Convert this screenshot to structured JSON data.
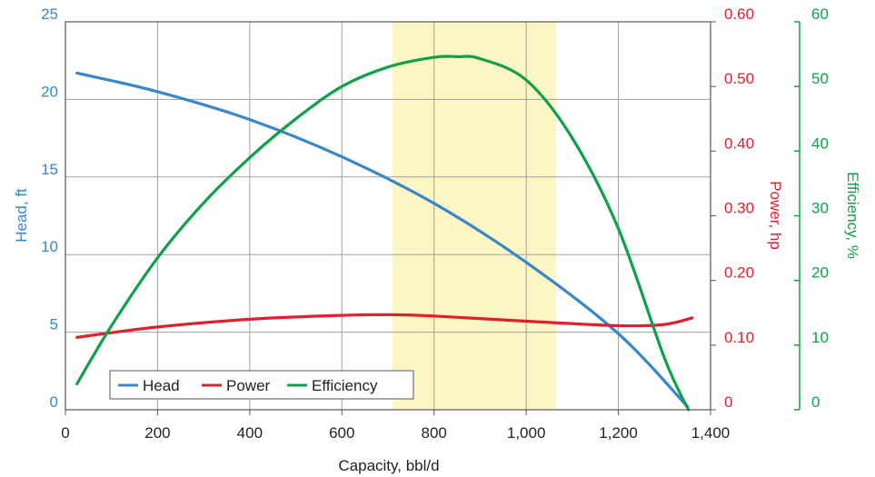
{
  "chart_data": {
    "type": "line",
    "xlabel": "Capacity, bbl/d",
    "xlim": [
      0,
      1400
    ],
    "x_ticks": [
      "0",
      "200",
      "400",
      "600",
      "800",
      "1,000",
      "1,200",
      "1,400"
    ],
    "grid": true,
    "legend_position": "bottom-left",
    "highlight_band": {
      "x_from": 710,
      "x_to": 1065,
      "color": "#fbf6c4"
    },
    "axes": {
      "head": {
        "label": "Head, ft",
        "color": "#3a87c8",
        "ylim": [
          0,
          25
        ],
        "ticks": [
          "0",
          "5",
          "10",
          "15",
          "20",
          "25"
        ]
      },
      "power": {
        "label": "Power, hp",
        "color": "#e0202f",
        "ylim": [
          0,
          0.6
        ],
        "ticks": [
          "0",
          "0.10",
          "0.20",
          "0.30",
          "0.40",
          "0.50",
          "0.60"
        ]
      },
      "efficiency": {
        "label": "Efficiency, %",
        "color": "#0fa04a",
        "ylim": [
          0,
          60
        ],
        "ticks": [
          "0",
          "10",
          "20",
          "30",
          "40",
          "50",
          "60"
        ]
      }
    },
    "series": [
      {
        "name": "Head",
        "axis": "head",
        "color": "#3a87c8",
        "x": [
          25,
          200,
          400,
          600,
          800,
          1000,
          1200,
          1350
        ],
        "values": [
          21.7,
          20.5,
          18.7,
          16.3,
          13.3,
          9.5,
          4.9,
          0.2
        ]
      },
      {
        "name": "Power",
        "axis": "power",
        "color": "#e0202f",
        "x": [
          25,
          200,
          400,
          600,
          700,
          800,
          1000,
          1200,
          1300,
          1360
        ],
        "values": [
          0.112,
          0.128,
          0.14,
          0.146,
          0.147,
          0.145,
          0.137,
          0.13,
          0.132,
          0.142
        ]
      },
      {
        "name": "Efficiency",
        "axis": "efficiency",
        "color": "#0fa04a",
        "x": [
          25,
          100,
          200,
          300,
          400,
          500,
          600,
          700,
          800,
          850,
          900,
          1000,
          1100,
          1200,
          1300,
          1352
        ],
        "values": [
          4,
          13,
          23.5,
          32,
          39,
          45,
          50,
          53,
          54.5,
          54.6,
          54.3,
          51,
          42,
          28,
          8,
          0
        ]
      }
    ],
    "legend": [
      "Head",
      "Power",
      "Efficiency"
    ]
  }
}
